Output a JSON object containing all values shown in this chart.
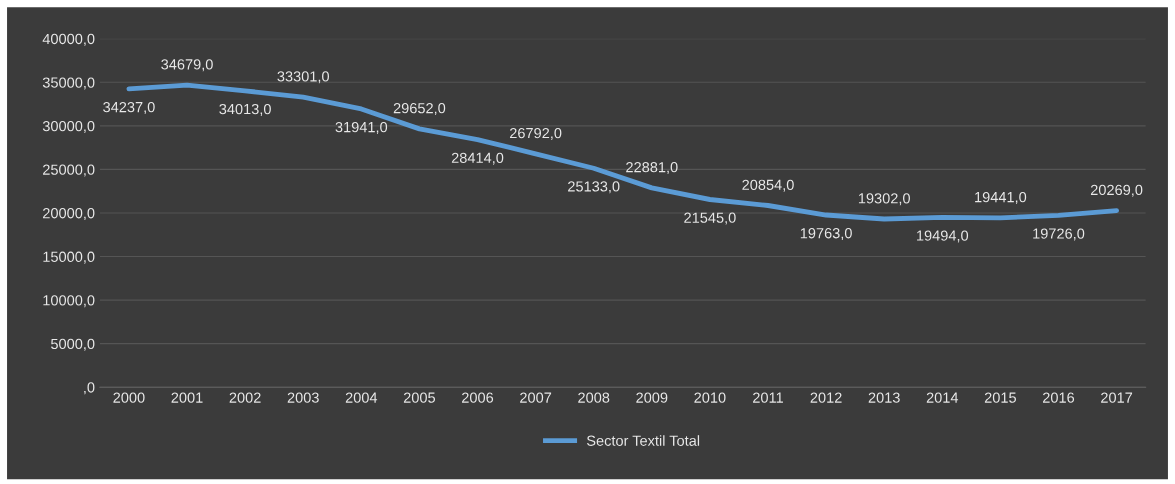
{
  "chart_data": {
    "type": "line",
    "categories": [
      "2000",
      "2001",
      "2002",
      "2003",
      "2004",
      "2005",
      "2006",
      "2007",
      "2008",
      "2009",
      "2010",
      "2011",
      "2012",
      "2013",
      "2014",
      "2015",
      "2016",
      "2017"
    ],
    "series": [
      {
        "name": "Sector Textil Total",
        "color": "#5b9bd5",
        "values": [
          34237,
          34679,
          34013,
          33301,
          31941,
          29652,
          28414,
          26792,
          25133,
          22881,
          21545,
          20854,
          19763,
          19302,
          19494,
          19441,
          19726,
          20269
        ],
        "value_labels": [
          "34237,0",
          "34679,0",
          "34013,0",
          "33301,0",
          "31941,0",
          "29652,0",
          "28414,0",
          "26792,0",
          "25133,0",
          "22881,0",
          "21545,0",
          "20854,0",
          "19763,0",
          "19302,0",
          "19494,0",
          "19441,0",
          "19726,0",
          "20269,0"
        ]
      }
    ],
    "ylim": [
      0,
      40000
    ],
    "yticks": [
      {
        "value": 0,
        "label": ",0"
      },
      {
        "value": 5000,
        "label": "5000,0"
      },
      {
        "value": 10000,
        "label": "10000,0"
      },
      {
        "value": 15000,
        "label": "15000,0"
      },
      {
        "value": 20000,
        "label": "20000,0"
      },
      {
        "value": 25000,
        "label": "25000,0"
      },
      {
        "value": 30000,
        "label": "30000,0"
      },
      {
        "value": 35000,
        "label": "35000,0"
      },
      {
        "value": 40000,
        "label": "40000,0"
      }
    ],
    "grid": "y",
    "legend": "bottom",
    "marker": "none",
    "line_style": "solid"
  }
}
